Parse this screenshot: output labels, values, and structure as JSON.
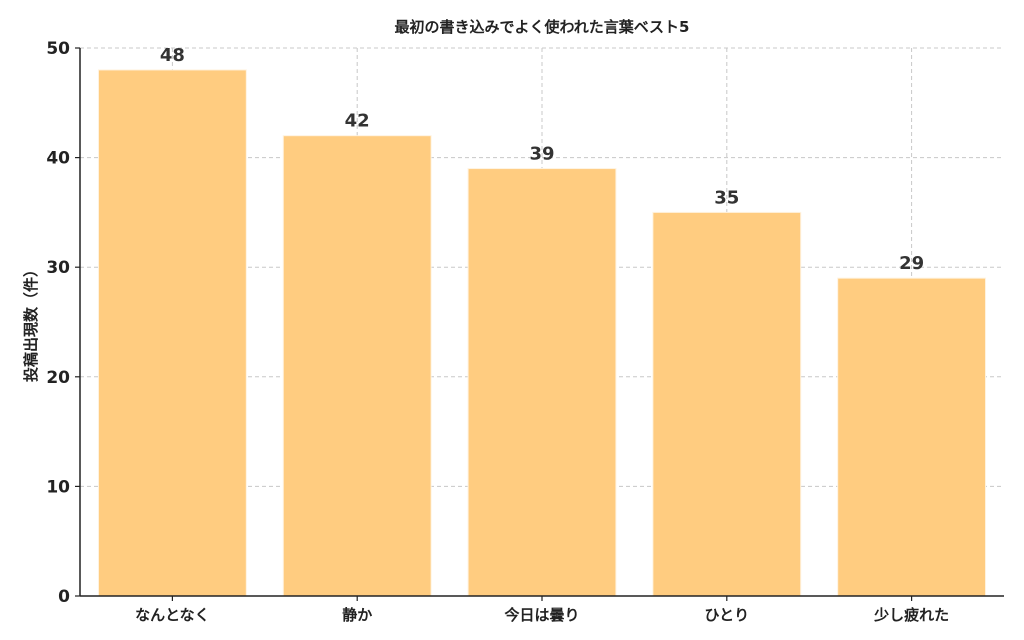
{
  "chart_data": {
    "type": "bar",
    "title": "最初の書き込みでよく使われた言葉ベスト5",
    "xlabel": "",
    "ylabel": "投稿出現数（件）",
    "categories": [
      "なんとなく",
      "静か",
      "今日は曇り",
      "ひとり",
      "少し疲れた"
    ],
    "values": [
      48,
      42,
      39,
      35,
      29
    ],
    "data_labels": [
      "48",
      "42",
      "39",
      "35",
      "29"
    ],
    "ylim": [
      0,
      50
    ],
    "yticks": [
      0,
      10,
      20,
      30,
      40,
      50
    ],
    "grid": true,
    "legend": "none",
    "bar_color": "#ffcc80",
    "bar_border_color": "#fff3e0"
  }
}
